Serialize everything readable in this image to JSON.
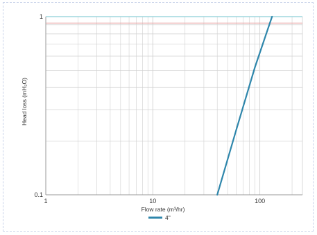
{
  "chart_data": {
    "type": "line",
    "title": "",
    "xlabel": "Flow rate (m³/hr)",
    "ylabel": "Head loss (mH₂O)",
    "x_scale": "log",
    "y_scale": "log",
    "xlim": [
      1,
      250
    ],
    "ylim": [
      0.1,
      1
    ],
    "x_tick_labels": [
      "1",
      "10",
      "100"
    ],
    "y_tick_labels": [
      "0.1",
      "1"
    ],
    "grid": true,
    "legend_position": "bottom-center",
    "reference_line_y": 0.92,
    "colors": {
      "series": "#2e86ab",
      "reference": "#e8a0a0",
      "top_border": "#8ccfd6",
      "grid": "#d0d0d0"
    },
    "series": [
      {
        "name": "4\"",
        "x": [
          40,
          60,
          90,
          130
        ],
        "y": [
          0.1,
          0.23,
          0.52,
          1.0
        ]
      }
    ]
  }
}
